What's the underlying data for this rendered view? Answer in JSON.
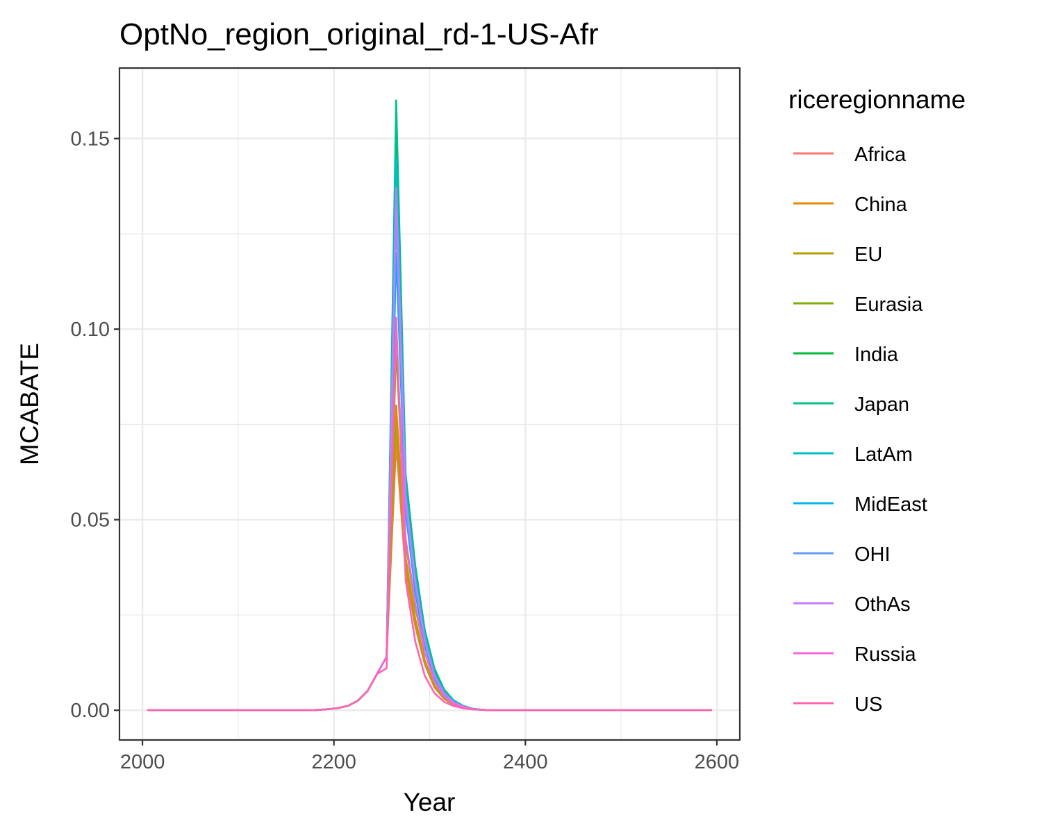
{
  "chart_data": {
    "type": "line",
    "title": "OptNo_region_original_rd-1-US-Afr",
    "xlabel": "Year",
    "ylabel": "MCABATE",
    "xlim": [
      1976,
      2624
    ],
    "ylim": [
      -0.0078,
      0.1685
    ],
    "x_ticks": [
      2000,
      2200,
      2400,
      2600
    ],
    "x_tick_labels": [
      "2000",
      "2200",
      "2400",
      "2600"
    ],
    "x_minor": [
      2100,
      2300,
      2500
    ],
    "y_ticks": [
      0.0,
      0.05,
      0.1,
      0.15
    ],
    "y_tick_labels": [
      "0.00",
      "0.05",
      "0.10",
      "0.15"
    ],
    "y_minor": [
      0.025,
      0.075,
      0.125
    ],
    "grid": true,
    "legend": {
      "title": "riceregionname",
      "position": "right"
    },
    "x": [
      2005,
      2015,
      2025,
      2035,
      2045,
      2055,
      2065,
      2075,
      2085,
      2095,
      2105,
      2115,
      2125,
      2135,
      2145,
      2155,
      2165,
      2175,
      2185,
      2195,
      2205,
      2215,
      2225,
      2235,
      2245,
      2255,
      2265,
      2275,
      2285,
      2295,
      2305,
      2315,
      2325,
      2335,
      2345,
      2355,
      2365,
      2375,
      2385,
      2395,
      2405,
      2415,
      2425,
      2435,
      2445,
      2455,
      2465,
      2475,
      2485,
      2495,
      2505,
      2515,
      2525,
      2535,
      2545,
      2555,
      2565,
      2575,
      2585,
      2595
    ],
    "series": [
      {
        "name": "Africa",
        "color": "#F8766D",
        "values": [
          0,
          0,
          0,
          0,
          0,
          0,
          0,
          0,
          0,
          0,
          0,
          0,
          0,
          0,
          0,
          0,
          0,
          0,
          0.0001,
          0.0003,
          0.0006,
          0.0012,
          0.0025,
          0.005,
          0.0095,
          0.014,
          0.07,
          0.036,
          0.022,
          0.012,
          0.006,
          0.003,
          0.0015,
          0.0007,
          0.0003,
          0.0001,
          0,
          0,
          0,
          0,
          0,
          0,
          0,
          0,
          0,
          0,
          0,
          0,
          0,
          0,
          0,
          0,
          0,
          0,
          0,
          0,
          0,
          0,
          0,
          0
        ]
      },
      {
        "name": "China",
        "color": "#DE8C00",
        "values": [
          0,
          0,
          0,
          0,
          0,
          0,
          0,
          0,
          0,
          0,
          0,
          0,
          0,
          0,
          0,
          0,
          0,
          0,
          0.0001,
          0.0003,
          0.0006,
          0.0012,
          0.0025,
          0.005,
          0.0095,
          0.014,
          0.08,
          0.04,
          0.024,
          0.013,
          0.0065,
          0.0032,
          0.0016,
          0.0007,
          0.0003,
          0.0001,
          0,
          0,
          0,
          0,
          0,
          0,
          0,
          0,
          0,
          0,
          0,
          0,
          0,
          0,
          0,
          0,
          0,
          0,
          0,
          0,
          0,
          0,
          0,
          0
        ]
      },
      {
        "name": "EU",
        "color": "#B79F00",
        "values": [
          0,
          0,
          0,
          0,
          0,
          0,
          0,
          0,
          0,
          0,
          0,
          0,
          0,
          0,
          0,
          0,
          0,
          0,
          0.0001,
          0.0003,
          0.0006,
          0.0012,
          0.0025,
          0.005,
          0.0095,
          0.014,
          0.075,
          0.038,
          0.023,
          0.0125,
          0.0062,
          0.003,
          0.0015,
          0.0007,
          0.0003,
          0.0001,
          0,
          0,
          0,
          0,
          0,
          0,
          0,
          0,
          0,
          0,
          0,
          0,
          0,
          0,
          0,
          0,
          0,
          0,
          0,
          0,
          0,
          0,
          0,
          0
        ]
      },
      {
        "name": "Eurasia",
        "color": "#7CAE00",
        "values": [
          0,
          0,
          0,
          0,
          0,
          0,
          0,
          0,
          0,
          0,
          0,
          0,
          0,
          0,
          0,
          0,
          0,
          0,
          0.0001,
          0.0003,
          0.0006,
          0.0012,
          0.0025,
          0.005,
          0.0095,
          0.014,
          0.095,
          0.044,
          0.027,
          0.015,
          0.0075,
          0.0036,
          0.0017,
          0.0008,
          0.0003,
          0.0001,
          0,
          0,
          0,
          0,
          0,
          0,
          0,
          0,
          0,
          0,
          0,
          0,
          0,
          0,
          0,
          0,
          0,
          0,
          0,
          0,
          0,
          0,
          0,
          0
        ]
      },
      {
        "name": "India",
        "color": "#00BA38",
        "values": [
          0,
          0,
          0,
          0,
          0,
          0,
          0,
          0,
          0,
          0,
          0,
          0,
          0,
          0,
          0,
          0,
          0,
          0,
          0.0001,
          0.0003,
          0.0006,
          0.0012,
          0.0025,
          0.005,
          0.0095,
          0.014,
          0.155,
          0.06,
          0.036,
          0.02,
          0.01,
          0.005,
          0.0024,
          0.0011,
          0.0004,
          0.0001,
          0,
          0,
          0,
          0,
          0,
          0,
          0,
          0,
          0,
          0,
          0,
          0,
          0,
          0,
          0,
          0,
          0,
          0,
          0,
          0,
          0,
          0,
          0,
          0
        ]
      },
      {
        "name": "Japan",
        "color": "#00C08B",
        "values": [
          0,
          0,
          0,
          0,
          0,
          0,
          0,
          0,
          0,
          0,
          0,
          0,
          0,
          0,
          0,
          0,
          0,
          0,
          0.0001,
          0.0003,
          0.0006,
          0.0012,
          0.0025,
          0.005,
          0.0095,
          0.014,
          0.16,
          0.062,
          0.038,
          0.021,
          0.011,
          0.0055,
          0.0026,
          0.0012,
          0.0004,
          0.0001,
          0,
          0,
          0,
          0,
          0,
          0,
          0,
          0,
          0,
          0,
          0,
          0,
          0,
          0,
          0,
          0,
          0,
          0,
          0,
          0,
          0,
          0,
          0,
          0
        ]
      },
      {
        "name": "LatAm",
        "color": "#00BFC4",
        "values": [
          0,
          0,
          0,
          0,
          0,
          0,
          0,
          0,
          0,
          0,
          0,
          0,
          0,
          0,
          0,
          0,
          0,
          0,
          0.0001,
          0.0003,
          0.0006,
          0.0012,
          0.0025,
          0.005,
          0.0095,
          0.014,
          0.145,
          0.058,
          0.035,
          0.0195,
          0.0098,
          0.0048,
          0.0023,
          0.0011,
          0.0004,
          0.0001,
          0,
          0,
          0,
          0,
          0,
          0,
          0,
          0,
          0,
          0,
          0,
          0,
          0,
          0,
          0,
          0,
          0,
          0,
          0,
          0,
          0,
          0,
          0,
          0
        ]
      },
      {
        "name": "MidEast",
        "color": "#00B4F0",
        "values": [
          0,
          0,
          0,
          0,
          0,
          0,
          0,
          0,
          0,
          0,
          0,
          0,
          0,
          0,
          0,
          0,
          0,
          0,
          0.0001,
          0.0003,
          0.0006,
          0.0012,
          0.0025,
          0.005,
          0.0095,
          0.014,
          0.12,
          0.052,
          0.031,
          0.017,
          0.0085,
          0.0042,
          0.002,
          0.0009,
          0.0003,
          0.0001,
          0,
          0,
          0,
          0,
          0,
          0,
          0,
          0,
          0,
          0,
          0,
          0,
          0,
          0,
          0,
          0,
          0,
          0,
          0,
          0,
          0,
          0,
          0,
          0
        ]
      },
      {
        "name": "OHI",
        "color": "#619CFF",
        "values": [
          0,
          0,
          0,
          0,
          0,
          0,
          0,
          0,
          0,
          0,
          0,
          0,
          0,
          0,
          0,
          0,
          0,
          0,
          0.0001,
          0.0003,
          0.0006,
          0.0012,
          0.0025,
          0.005,
          0.0095,
          0.014,
          0.13,
          0.054,
          0.033,
          0.018,
          0.009,
          0.0044,
          0.0021,
          0.001,
          0.0003,
          0.0001,
          0,
          0,
          0,
          0,
          0,
          0,
          0,
          0,
          0,
          0,
          0,
          0,
          0,
          0,
          0,
          0,
          0,
          0,
          0,
          0,
          0,
          0,
          0,
          0
        ]
      },
      {
        "name": "OthAs",
        "color": "#C77CFF",
        "values": [
          0,
          0,
          0,
          0,
          0,
          0,
          0,
          0,
          0,
          0,
          0,
          0,
          0,
          0,
          0,
          0,
          0,
          0,
          0.0001,
          0.0003,
          0.0006,
          0.0012,
          0.0025,
          0.005,
          0.0095,
          0.014,
          0.137,
          0.056,
          0.034,
          0.0185,
          0.0092,
          0.0045,
          0.0021,
          0.001,
          0.0003,
          0.0001,
          0,
          0,
          0,
          0,
          0,
          0,
          0,
          0,
          0,
          0,
          0,
          0,
          0,
          0,
          0,
          0,
          0,
          0,
          0,
          0,
          0,
          0,
          0,
          0
        ]
      },
      {
        "name": "Russia",
        "color": "#F564E3",
        "values": [
          0,
          0,
          0,
          0,
          0,
          0,
          0,
          0,
          0,
          0,
          0,
          0,
          0,
          0,
          0,
          0,
          0,
          0,
          0.0001,
          0.0003,
          0.0006,
          0.0012,
          0.0025,
          0.005,
          0.0095,
          0.014,
          0.1,
          0.045,
          0.028,
          0.015,
          0.0075,
          0.0036,
          0.0017,
          0.0008,
          0.0003,
          0.0001,
          0,
          0,
          0,
          0,
          0,
          0,
          0,
          0,
          0,
          0,
          0,
          0,
          0,
          0,
          0,
          0,
          0,
          0,
          0,
          0,
          0,
          0,
          0,
          0
        ]
      },
      {
        "name": "US",
        "color": "#FF64B0",
        "values": [
          0,
          0,
          0,
          0,
          0,
          0,
          0,
          0,
          0,
          0,
          0,
          0,
          0,
          0,
          0,
          0,
          0,
          0,
          0.0001,
          0.0003,
          0.0006,
          0.0012,
          0.0025,
          0.005,
          0.0095,
          0.011,
          0.103,
          0.034,
          0.018,
          0.009,
          0.0045,
          0.0022,
          0.0011,
          0.0005,
          0.0002,
          0.0001,
          0,
          0,
          0,
          0,
          0,
          0,
          0,
          0,
          0,
          0,
          0,
          0,
          0,
          0,
          0,
          0,
          0,
          0,
          0,
          0,
          0,
          0,
          0,
          0
        ]
      }
    ]
  }
}
